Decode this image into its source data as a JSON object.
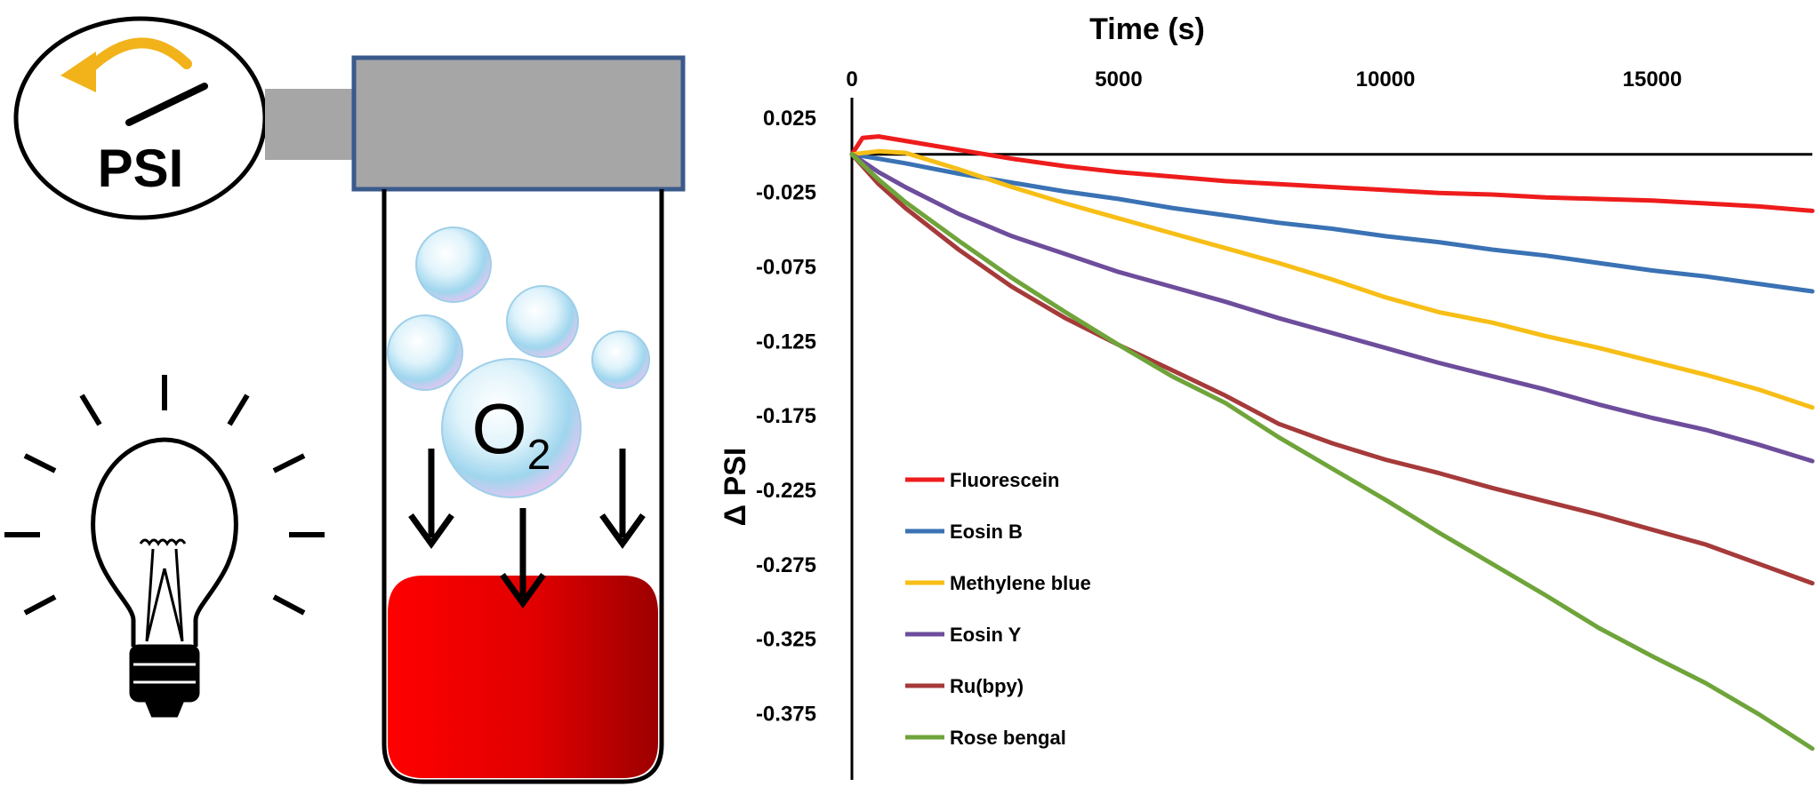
{
  "illustration": {
    "gauge_label": "PSI",
    "gas_label_main": "O",
    "gas_label_sub": "2",
    "colors": {
      "gauge_arrow": "#f2b21a",
      "cap_fill": "#a6a6a6",
      "cap_border": "#3a5a8c",
      "liquid_start": "#ff0000",
      "liquid_end": "#a00000"
    }
  },
  "chart_data": {
    "type": "line",
    "xlabel": "Time (s)",
    "ylabel": "Δ PSI",
    "xlim": [
      0,
      18000
    ],
    "ylim": [
      -0.42,
      0.035
    ],
    "x_ticks": [
      0,
      5000,
      10000,
      15000
    ],
    "x_tick_labels": [
      "0",
      "5000",
      "10000",
      "15000"
    ],
    "y_ticks": [
      0.025,
      -0.025,
      -0.075,
      -0.125,
      -0.175,
      -0.225,
      -0.275,
      -0.325,
      -0.375
    ],
    "y_tick_labels": [
      "0.025",
      "-0.025",
      "-0.075",
      "-0.125",
      "-0.175",
      "-0.225",
      "-0.275",
      "-0.325",
      "-0.375"
    ],
    "x_axis_position": "top",
    "grid": false,
    "legend_position": "lower-left",
    "series": [
      {
        "name": "Fluorescein",
        "color": "#ee1c1c",
        "x": [
          0,
          200,
          500,
          1000,
          2000,
          3000,
          4000,
          5000,
          6000,
          7000,
          8000,
          9000,
          10000,
          11000,
          12000,
          13000,
          14000,
          15000,
          16000,
          17000,
          18000
        ],
        "y": [
          0,
          0.011,
          0.012,
          0.009,
          0.003,
          -0.003,
          -0.008,
          -0.012,
          -0.015,
          -0.018,
          -0.02,
          -0.022,
          -0.024,
          -0.026,
          -0.027,
          -0.029,
          -0.03,
          -0.031,
          -0.033,
          -0.035,
          -0.038
        ]
      },
      {
        "name": "Eosin B",
        "color": "#3a72b4",
        "x": [
          0,
          500,
          1000,
          2000,
          3000,
          4000,
          5000,
          6000,
          7000,
          8000,
          9000,
          10000,
          11000,
          12000,
          13000,
          14000,
          15000,
          16000,
          17000,
          18000
        ],
        "y": [
          0,
          -0.003,
          -0.006,
          -0.013,
          -0.019,
          -0.025,
          -0.03,
          -0.036,
          -0.041,
          -0.046,
          -0.05,
          -0.055,
          -0.059,
          -0.064,
          -0.068,
          -0.073,
          -0.078,
          -0.082,
          -0.087,
          -0.092
        ]
      },
      {
        "name": "Methylene blue",
        "color": "#f7be16",
        "x": [
          0,
          500,
          1000,
          2000,
          3000,
          4000,
          5000,
          6000,
          7000,
          8000,
          9000,
          10000,
          11000,
          12000,
          13000,
          14000,
          15000,
          16000,
          17000,
          18000
        ],
        "y": [
          0,
          0.002,
          0.001,
          -0.01,
          -0.022,
          -0.033,
          -0.043,
          -0.053,
          -0.063,
          -0.073,
          -0.084,
          -0.096,
          -0.106,
          -0.113,
          -0.122,
          -0.13,
          -0.139,
          -0.148,
          -0.158,
          -0.17
        ]
      },
      {
        "name": "Eosin Y",
        "color": "#6e4d9c",
        "x": [
          0,
          500,
          1000,
          2000,
          3000,
          4000,
          5000,
          6000,
          7000,
          8000,
          9000,
          10000,
          11000,
          12000,
          13000,
          14000,
          15000,
          16000,
          17000,
          18000
        ],
        "y": [
          0,
          -0.012,
          -0.022,
          -0.04,
          -0.055,
          -0.067,
          -0.079,
          -0.089,
          -0.099,
          -0.11,
          -0.12,
          -0.13,
          -0.14,
          -0.149,
          -0.158,
          -0.168,
          -0.177,
          -0.185,
          -0.195,
          -0.206
        ]
      },
      {
        "name": "Ru(bpy)",
        "color": "#a63a3a",
        "x": [
          0,
          500,
          1000,
          2000,
          3000,
          4000,
          5000,
          6000,
          7000,
          8000,
          9000,
          10000,
          11000,
          12000,
          13000,
          14000,
          15000,
          16000,
          17000,
          18000
        ],
        "y": [
          0,
          -0.02,
          -0.036,
          -0.064,
          -0.089,
          -0.11,
          -0.128,
          -0.145,
          -0.162,
          -0.181,
          -0.194,
          -0.205,
          -0.214,
          -0.224,
          -0.233,
          -0.242,
          -0.252,
          -0.262,
          -0.275,
          -0.288
        ]
      },
      {
        "name": "Rose bengal",
        "color": "#6fa43a",
        "x": [
          0,
          500,
          1000,
          2000,
          3000,
          4000,
          5000,
          6000,
          7000,
          8000,
          9000,
          10000,
          11000,
          12000,
          13000,
          14000,
          15000,
          16000,
          17000,
          18000
        ],
        "y": [
          0,
          -0.017,
          -0.032,
          -0.058,
          -0.083,
          -0.106,
          -0.128,
          -0.149,
          -0.167,
          -0.19,
          -0.211,
          -0.232,
          -0.254,
          -0.275,
          -0.296,
          -0.318,
          -0.337,
          -0.355,
          -0.376,
          -0.399
        ]
      }
    ]
  }
}
